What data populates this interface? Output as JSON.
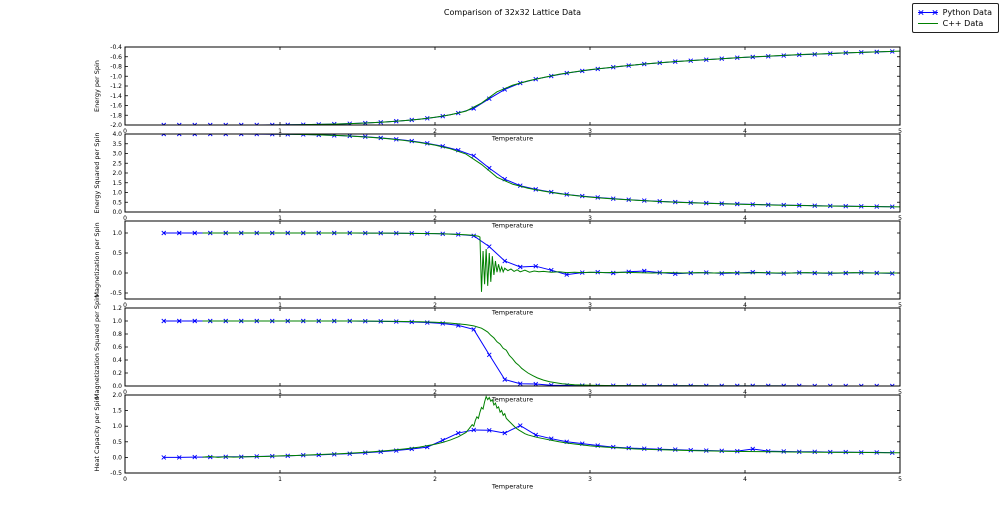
{
  "chart_data": {
    "type": "line",
    "title": "Comparison of 32x32 Lattice Data",
    "xlabel": "Temperature",
    "legend_position": "upper right outside",
    "grid": false,
    "legend": [
      {
        "label": "Python Data",
        "color": "#0000ff",
        "marker": "x"
      },
      {
        "label": "C++ Data",
        "color": "#008000",
        "marker": "none"
      }
    ],
    "series_colors": {
      "python": "#0000ff",
      "cpp": "#008000"
    },
    "python_T": [
      0.25,
      0.35,
      0.45,
      0.55,
      0.65,
      0.75,
      0.85,
      0.95,
      1.05,
      1.15,
      1.25,
      1.35,
      1.45,
      1.55,
      1.65,
      1.75,
      1.85,
      1.95,
      2.05,
      2.15,
      2.25,
      2.35,
      2.45,
      2.55,
      2.65,
      2.75,
      2.85,
      2.95,
      3.05,
      3.15,
      3.25,
      3.35,
      3.45,
      3.55,
      3.65,
      3.75,
      3.85,
      3.95,
      4.05,
      4.15,
      4.25,
      4.35,
      4.45,
      4.55,
      4.65,
      4.75,
      4.85,
      4.95
    ],
    "cpp_T": [
      0.5,
      0.6,
      0.7,
      0.8,
      0.9,
      1.0,
      1.1,
      1.2,
      1.3,
      1.4,
      1.5,
      1.6,
      1.7,
      1.8,
      1.9,
      2.0,
      2.1,
      2.2,
      2.3,
      2.4,
      2.5,
      2.6,
      2.7,
      2.8,
      2.9,
      3.0,
      3.1,
      3.2,
      3.3,
      3.4,
      3.5,
      3.6,
      3.7,
      3.8,
      3.9,
      4.0,
      4.1,
      4.2,
      4.3,
      4.4,
      4.5,
      4.6,
      4.7,
      4.8,
      4.9,
      5.0
    ],
    "subplots": [
      {
        "name": "energy",
        "ylabel": "Energy per Spin",
        "xlabel": "Temperature",
        "xlim": [
          0,
          5
        ],
        "xticks": [
          0,
          1,
          2,
          3,
          4,
          5
        ],
        "ylim": [
          -2.0,
          -0.4
        ],
        "yticks": [
          -2.0,
          -1.8,
          -1.6,
          -1.4,
          -1.2,
          -1.0,
          -0.8,
          -0.6,
          -0.4
        ],
        "python": {
          "x_ref": "python_T",
          "y": [
            -2.0,
            -2.0,
            -2.0,
            -2.0,
            -2.0,
            -2.0,
            -1.999,
            -1.998,
            -1.996,
            -1.993,
            -1.988,
            -1.981,
            -1.972,
            -1.96,
            -1.944,
            -1.923,
            -1.897,
            -1.863,
            -1.82,
            -1.755,
            -1.66,
            -1.46,
            -1.27,
            -1.14,
            -1.06,
            -0.995,
            -0.935,
            -0.89,
            -0.85,
            -0.815,
            -0.78,
            -0.75,
            -0.725,
            -0.7,
            -0.68,
            -0.66,
            -0.64,
            -0.62,
            -0.605,
            -0.59,
            -0.575,
            -0.56,
            -0.55,
            -0.535,
            -0.52,
            -0.51,
            -0.5,
            -0.49
          ]
        },
        "cpp": {
          "x_ref": "cpp_T",
          "y": [
            -2.0,
            -2.0,
            -2.0,
            -2.0,
            -1.999,
            -1.997,
            -1.995,
            -1.991,
            -1.985,
            -1.977,
            -1.966,
            -1.952,
            -1.934,
            -1.911,
            -1.881,
            -1.842,
            -1.79,
            -1.715,
            -1.55,
            -1.32,
            -1.185,
            -1.095,
            -1.025,
            -0.96,
            -0.91,
            -0.865,
            -0.83,
            -0.795,
            -0.765,
            -0.735,
            -0.71,
            -0.69,
            -0.67,
            -0.65,
            -0.63,
            -0.61,
            -0.595,
            -0.58,
            -0.565,
            -0.55,
            -0.54,
            -0.525,
            -0.515,
            -0.505,
            -0.495,
            -0.485
          ]
        }
      },
      {
        "name": "energy-squared",
        "ylabel": "Energy Squared per Spin",
        "xlabel": "Temperature",
        "xlim": [
          0,
          5
        ],
        "xticks": [
          0,
          1,
          2,
          3,
          4,
          5
        ],
        "ylim": [
          0.0,
          4.0
        ],
        "yticks": [
          0.0,
          0.5,
          1.0,
          1.5,
          2.0,
          2.5,
          3.0,
          3.5,
          4.0
        ],
        "python": {
          "x_ref": "python_T",
          "y": [
            4.0,
            4.0,
            4.0,
            4.0,
            4.0,
            4.0,
            3.995,
            3.99,
            3.985,
            3.975,
            3.955,
            3.93,
            3.9,
            3.86,
            3.8,
            3.73,
            3.64,
            3.52,
            3.37,
            3.17,
            2.88,
            2.25,
            1.68,
            1.35,
            1.16,
            1.02,
            0.9,
            0.815,
            0.745,
            0.685,
            0.63,
            0.585,
            0.545,
            0.51,
            0.48,
            0.455,
            0.43,
            0.41,
            0.39,
            0.37,
            0.355,
            0.34,
            0.325,
            0.31,
            0.3,
            0.29,
            0.28,
            0.27
          ]
        },
        "cpp": {
          "x_ref": "cpp_T",
          "y": [
            4.0,
            4.0,
            4.0,
            4.0,
            3.998,
            3.995,
            3.98,
            3.965,
            3.945,
            3.915,
            3.875,
            3.82,
            3.755,
            3.67,
            3.565,
            3.43,
            3.24,
            2.97,
            2.44,
            1.78,
            1.43,
            1.22,
            1.07,
            0.94,
            0.845,
            0.765,
            0.7,
            0.645,
            0.6,
            0.555,
            0.52,
            0.49,
            0.46,
            0.435,
            0.41,
            0.39,
            0.37,
            0.355,
            0.34,
            0.325,
            0.31,
            0.3,
            0.29,
            0.28,
            0.27,
            0.26
          ]
        }
      },
      {
        "name": "magnetization",
        "ylabel": "Magnetization per Spin",
        "xlabel": "Temperature",
        "xlim": [
          0,
          5
        ],
        "xticks": [
          0,
          1,
          2,
          3,
          4,
          5
        ],
        "ylim": [
          -0.65,
          1.3
        ],
        "yticks": [
          -0.5,
          0.0,
          0.5,
          1.0
        ],
        "python": {
          "x_ref": "python_T",
          "y": [
            1.0,
            1.0,
            1.0,
            1.0,
            1.0,
            1.0,
            1.0,
            1.0,
            1.0,
            1.0,
            1.0,
            1.0,
            1.0,
            0.998,
            0.997,
            0.995,
            0.992,
            0.988,
            0.98,
            0.965,
            0.93,
            0.66,
            0.3,
            0.15,
            0.17,
            0.07,
            -0.04,
            0.01,
            0.02,
            0.0,
            0.03,
            0.05,
            0.01,
            -0.02,
            0.0,
            0.01,
            -0.01,
            0.0,
            0.02,
            0.0,
            -0.01,
            0.01,
            0.0,
            -0.01,
            0.0,
            0.01,
            0.0,
            -0.01
          ]
        },
        "cpp": {
          "x": [
            0.5,
            0.6,
            0.7,
            0.8,
            0.9,
            1.0,
            1.1,
            1.2,
            1.3,
            1.4,
            1.5,
            1.6,
            1.7,
            1.8,
            1.9,
            2.0,
            2.1,
            2.2,
            2.25,
            2.28,
            2.29,
            2.3,
            2.31,
            2.32,
            2.33,
            2.34,
            2.35,
            2.36,
            2.37,
            2.38,
            2.39,
            2.4,
            2.41,
            2.42,
            2.43,
            2.44,
            2.45,
            2.47,
            2.49,
            2.51,
            2.53,
            2.55,
            2.58,
            2.61,
            2.64,
            2.67,
            2.7,
            2.75,
            2.8,
            2.85,
            2.9,
            2.95,
            3.0,
            3.1,
            3.2,
            3.3,
            3.4,
            3.5,
            3.6,
            3.7,
            3.8,
            3.9,
            4.0,
            4.1,
            4.2,
            4.3,
            4.4,
            4.5,
            4.6,
            4.7,
            4.8,
            4.9,
            5.0
          ],
          "y": [
            1.0,
            1.0,
            1.0,
            1.0,
            1.0,
            1.0,
            1.0,
            1.0,
            1.0,
            1.0,
            0.999,
            0.998,
            0.996,
            0.993,
            0.989,
            0.983,
            0.973,
            0.955,
            0.94,
            0.92,
            0.9,
            -0.47,
            0.55,
            -0.28,
            0.6,
            -0.32,
            0.5,
            -0.22,
            0.42,
            -0.05,
            0.3,
            0.02,
            0.22,
            0.04,
            0.15,
            0.03,
            0.12,
            0.06,
            0.1,
            0.04,
            0.08,
            0.03,
            0.07,
            0.02,
            0.05,
            0.03,
            0.04,
            0.02,
            0.03,
            0.01,
            0.02,
            0.01,
            0.02,
            0.01,
            0.02,
            0.01,
            0.0,
            0.01,
            0.0,
            0.01,
            0.0,
            0.01,
            0.0,
            0.01,
            0.0,
            0.0,
            0.01,
            0.0,
            0.0,
            0.01,
            0.0,
            0.0,
            0.0
          ]
        }
      },
      {
        "name": "magnetization-squared",
        "ylabel": "Magnetization Squared per Spin",
        "xlabel": "Temperature",
        "xlim": [
          0,
          5
        ],
        "xticks": [
          0,
          1,
          2,
          3,
          4,
          5
        ],
        "ylim": [
          0.0,
          1.2
        ],
        "yticks": [
          0.0,
          0.2,
          0.4,
          0.6,
          0.8,
          1.0,
          1.2
        ],
        "python": {
          "x_ref": "python_T",
          "y": [
            1.0,
            1.0,
            1.0,
            1.0,
            1.0,
            1.0,
            1.0,
            1.0,
            1.0,
            1.0,
            1.0,
            1.0,
            1.0,
            0.997,
            0.995,
            0.991,
            0.985,
            0.976,
            0.962,
            0.932,
            0.87,
            0.48,
            0.1,
            0.035,
            0.03,
            0.012,
            0.008,
            0.006,
            0.005,
            0.004,
            0.004,
            0.004,
            0.003,
            0.003,
            0.003,
            0.002,
            0.002,
            0.002,
            0.002,
            0.002,
            0.002,
            0.002,
            0.001,
            0.001,
            0.001,
            0.001,
            0.001,
            0.001
          ]
        },
        "cpp": {
          "x": [
            0.5,
            0.6,
            0.7,
            0.8,
            0.9,
            1.0,
            1.1,
            1.2,
            1.3,
            1.4,
            1.5,
            1.6,
            1.7,
            1.8,
            1.9,
            2.0,
            2.1,
            2.2,
            2.25,
            2.3,
            2.32,
            2.34,
            2.36,
            2.38,
            2.4,
            2.42,
            2.44,
            2.46,
            2.48,
            2.5,
            2.52,
            2.54,
            2.56,
            2.58,
            2.6,
            2.63,
            2.66,
            2.7,
            2.74,
            2.78,
            2.82,
            2.86,
            2.9,
            2.95,
            3.0,
            3.1,
            3.2,
            3.3,
            3.4,
            3.5,
            3.6,
            3.7,
            3.8,
            3.9,
            4.0,
            4.2,
            4.4,
            4.6,
            4.8,
            5.0
          ],
          "y": [
            1.0,
            1.0,
            1.0,
            1.0,
            1.0,
            1.0,
            1.0,
            1.0,
            1.0,
            1.0,
            0.999,
            0.998,
            0.996,
            0.993,
            0.988,
            0.98,
            0.967,
            0.945,
            0.925,
            0.89,
            0.86,
            0.83,
            0.78,
            0.74,
            0.68,
            0.645,
            0.58,
            0.55,
            0.47,
            0.42,
            0.36,
            0.32,
            0.27,
            0.235,
            0.2,
            0.16,
            0.125,
            0.09,
            0.065,
            0.05,
            0.035,
            0.027,
            0.02,
            0.015,
            0.012,
            0.008,
            0.006,
            0.005,
            0.004,
            0.004,
            0.003,
            0.003,
            0.002,
            0.002,
            0.002,
            0.002,
            0.001,
            0.001,
            0.001,
            0.001
          ]
        }
      },
      {
        "name": "heat-capacity",
        "ylabel": "Heat Capacity per Spin",
        "xlabel": "Temperature",
        "xlim": [
          0,
          5
        ],
        "xticks": [
          0,
          1,
          2,
          3,
          4,
          5
        ],
        "ylim": [
          -0.5,
          2.0
        ],
        "yticks": [
          -0.5,
          0.0,
          0.5,
          1.0,
          1.5,
          2.0
        ],
        "python": {
          "x_ref": "python_T",
          "y": [
            0.0,
            0.0,
            0.01,
            0.01,
            0.02,
            0.02,
            0.03,
            0.04,
            0.05,
            0.07,
            0.08,
            0.1,
            0.12,
            0.15,
            0.18,
            0.22,
            0.27,
            0.33,
            0.55,
            0.78,
            0.88,
            0.87,
            0.78,
            1.02,
            0.72,
            0.6,
            0.5,
            0.44,
            0.38,
            0.33,
            0.3,
            0.28,
            0.26,
            0.25,
            0.23,
            0.22,
            0.21,
            0.2,
            0.27,
            0.2,
            0.19,
            0.18,
            0.18,
            0.17,
            0.17,
            0.16,
            0.16,
            0.15
          ]
        },
        "cpp": {
          "x": [
            0.5,
            0.55,
            0.6,
            0.65,
            0.7,
            0.8,
            0.9,
            1.0,
            1.1,
            1.2,
            1.3,
            1.4,
            1.5,
            1.6,
            1.7,
            1.8,
            1.9,
            2.0,
            2.05,
            2.1,
            2.15,
            2.2,
            2.22,
            2.24,
            2.25,
            2.26,
            2.27,
            2.28,
            2.29,
            2.3,
            2.31,
            2.32,
            2.33,
            2.34,
            2.35,
            2.36,
            2.37,
            2.38,
            2.39,
            2.4,
            2.41,
            2.42,
            2.43,
            2.44,
            2.45,
            2.46,
            2.48,
            2.5,
            2.52,
            2.54,
            2.56,
            2.58,
            2.6,
            2.63,
            2.66,
            2.7,
            2.75,
            2.8,
            2.85,
            2.9,
            2.95,
            3.0,
            3.1,
            3.2,
            3.3,
            3.4,
            3.5,
            3.6,
            3.7,
            3.8,
            3.9,
            4.0,
            4.1,
            4.2,
            4.3,
            4.4,
            4.5,
            4.6,
            4.7,
            4.8,
            4.9,
            5.0
          ],
          "y": [
            0.01,
            0.03,
            0.0,
            0.02,
            0.01,
            0.02,
            0.03,
            0.05,
            0.06,
            0.08,
            0.1,
            0.12,
            0.15,
            0.18,
            0.22,
            0.27,
            0.33,
            0.42,
            0.48,
            0.56,
            0.66,
            0.8,
            0.92,
            1.05,
            1.0,
            1.18,
            1.3,
            1.25,
            1.45,
            1.6,
            1.55,
            1.78,
            1.95,
            1.85,
            1.92,
            1.8,
            1.85,
            1.68,
            1.74,
            1.58,
            1.62,
            1.45,
            1.5,
            1.35,
            1.4,
            1.25,
            1.15,
            1.05,
            0.95,
            0.88,
            0.82,
            0.76,
            0.72,
            0.68,
            0.64,
            0.6,
            0.55,
            0.5,
            0.46,
            0.43,
            0.4,
            0.37,
            0.33,
            0.3,
            0.27,
            0.255,
            0.24,
            0.225,
            0.215,
            0.205,
            0.195,
            0.19,
            0.185,
            0.18,
            0.175,
            0.17,
            0.165,
            0.16,
            0.16,
            0.155,
            0.15,
            0.15
          ]
        }
      }
    ]
  }
}
